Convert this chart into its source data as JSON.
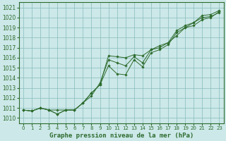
{
  "title": "Graphe pression niveau de la mer (hPa)",
  "bg_color": "#cce8e8",
  "grid_color": "#88bbbb",
  "line_color": "#2d6b2d",
  "marker_color": "#2d6b2d",
  "xlim": [
    -0.5,
    23.5
  ],
  "ylim": [
    1009.5,
    1021.5
  ],
  "yticks": [
    1010,
    1011,
    1012,
    1013,
    1014,
    1015,
    1016,
    1017,
    1018,
    1019,
    1020,
    1021
  ],
  "xticks": [
    0,
    1,
    2,
    3,
    4,
    5,
    6,
    7,
    8,
    9,
    10,
    11,
    12,
    13,
    14,
    15,
    16,
    17,
    18,
    19,
    20,
    21,
    22,
    23
  ],
  "series": [
    [
      1010.8,
      1010.7,
      1011.0,
      1010.8,
      1010.4,
      1010.8,
      1010.8,
      1011.5,
      1012.5,
      1013.3,
      1016.2,
      1016.1,
      1016.0,
      1016.3,
      1016.2,
      1016.8,
      1017.0,
      1017.5,
      1018.2,
      1019.0,
      1019.2,
      1019.8,
      1020.0,
      1020.6
    ],
    [
      1010.8,
      1010.7,
      1011.0,
      1010.8,
      1010.8,
      1010.8,
      1010.8,
      1011.5,
      1012.5,
      1013.3,
      1015.2,
      1014.4,
      1014.3,
      1015.8,
      1015.1,
      1016.5,
      1016.8,
      1017.3,
      1018.5,
      1019.0,
      1019.5,
      1020.0,
      1020.1,
      1020.5
    ],
    [
      1010.8,
      1010.7,
      1011.0,
      1010.8,
      1010.4,
      1010.8,
      1010.8,
      1011.5,
      1012.2,
      1013.5,
      1015.8,
      1015.5,
      1015.2,
      1016.1,
      1015.5,
      1016.8,
      1017.2,
      1017.5,
      1018.7,
      1019.2,
      1019.5,
      1020.2,
      1020.3,
      1020.7
    ]
  ],
  "title_fontsize": 6.5,
  "tick_fontsize": 5.5,
  "tick_fontsize_x": 5.0
}
